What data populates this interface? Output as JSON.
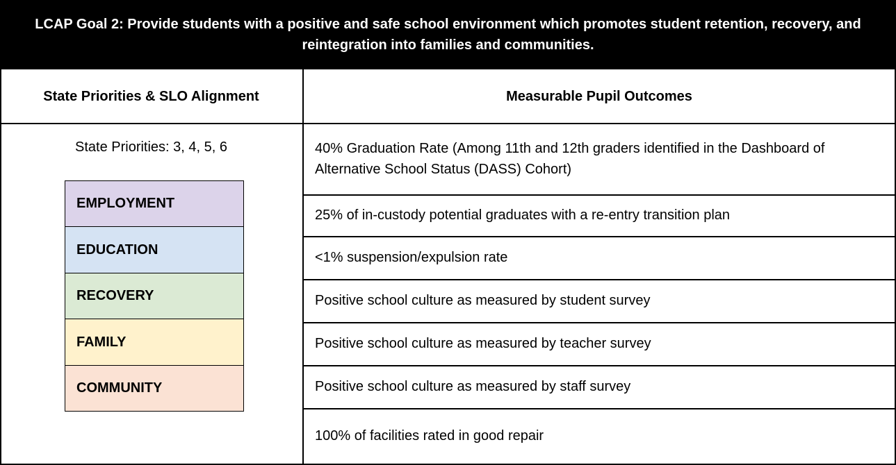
{
  "title": "LCAP Goal 2: Provide students with a positive and safe school environment which promotes student retention, recovery, and reintegration into families and communities.",
  "headers": [
    "State Priorities & SLO Alignment",
    "Measurable Pupil Outcomes"
  ],
  "state_priorities": "State Priorities: 3, 4, 5, 6",
  "slo": [
    {
      "label": "EMPLOYMENT",
      "color": "#dcd3ea"
    },
    {
      "label": "EDUCATION",
      "color": "#d5e3f3"
    },
    {
      "label": "RECOVERY",
      "color": "#dbead4"
    },
    {
      "label": "FAMILY",
      "color": "#fff2cc"
    },
    {
      "label": "COMMUNITY",
      "color": "#fbe2d4"
    }
  ],
  "outcomes": [
    "40% Graduation Rate (Among 11th and 12th graders identified in the Dashboard of Alternative School Status (DASS) Cohort)",
    "25% of in-custody potential graduates with a re-entry transition plan",
    "<1% suspension/expulsion rate",
    "Positive school culture as measured by student survey",
    "Positive school culture as measured by teacher survey",
    "Positive school culture as measured by staff survey",
    "100% of facilities rated in good repair"
  ]
}
